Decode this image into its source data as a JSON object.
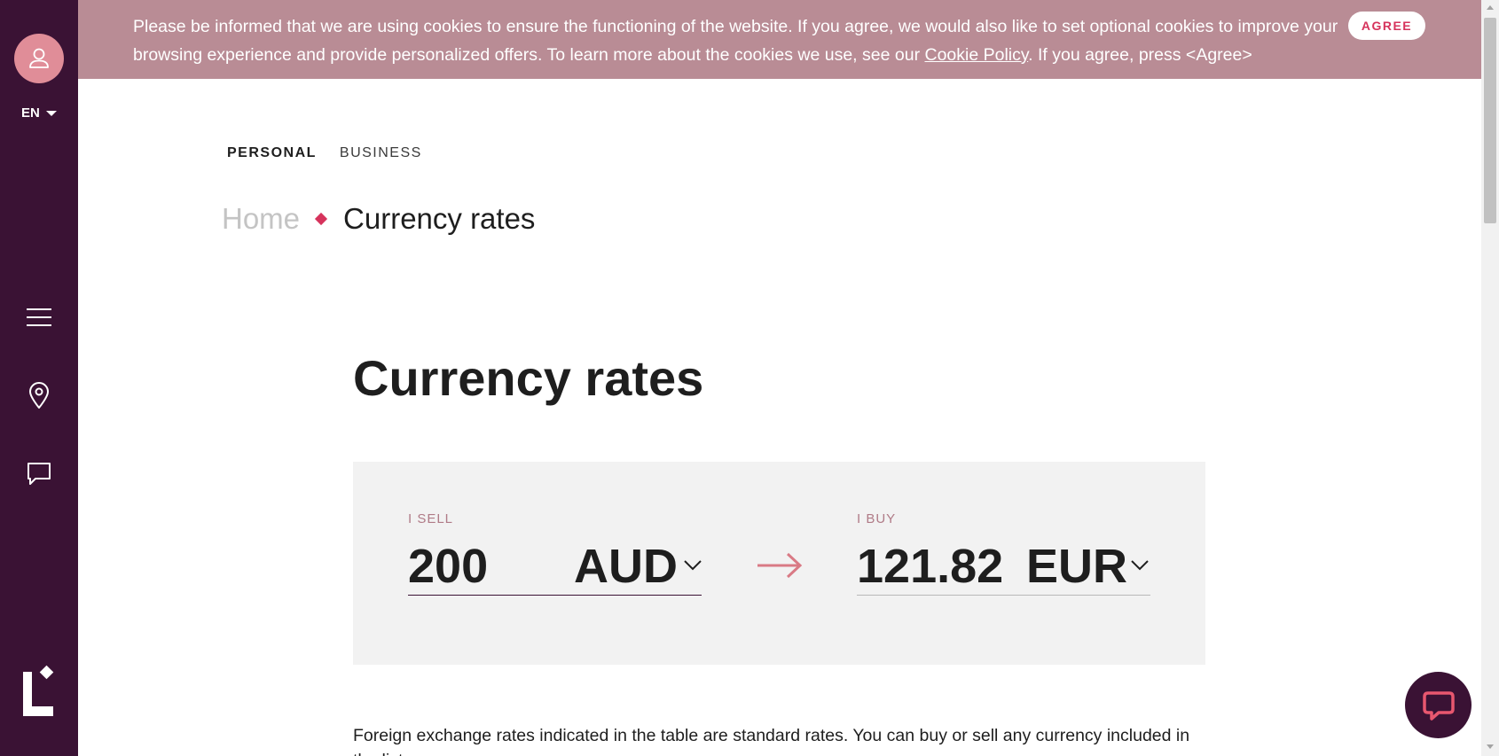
{
  "sidebar": {
    "language": "EN"
  },
  "cookie": {
    "text_before_link": "Please be informed that we are using cookies to ensure the functioning of the website. If you agree, we would also like to set optional cookies to improve your browsing experience and provide personalized offers. To learn more about the cookies we use, see our ",
    "link_label": "Cookie Policy",
    "text_after_link": ". If you agree, press <Agree>",
    "agree_label": "AGREE"
  },
  "topnav": {
    "personal": "PERSONAL",
    "business": "BUSINESS"
  },
  "breadcrumb": {
    "home": "Home",
    "current": "Currency rates"
  },
  "page_title": "Currency rates",
  "converter": {
    "sell_label": "I SELL",
    "sell_amount": "200",
    "sell_currency": "AUD",
    "buy_label": "I BUY",
    "buy_amount": "121.82",
    "buy_currency": "EUR"
  },
  "info_text": "Foreign exchange rates indicated in the table are standard rates. You can buy or sell any currency included in the list",
  "colors": {
    "sidebar_bg": "#3a1234",
    "cookie_bg": "#b98c95",
    "accent": "#d6335c",
    "avatar": "#e08d98",
    "converter_bg": "#f2f2f2"
  },
  "icons": {
    "avatar": "user-icon",
    "menu": "hamburger-menu-icon",
    "location": "location-pin-icon",
    "chat": "chat-bubble-icon",
    "arrow": "arrow-right-icon",
    "dropdown": "chevron-down-icon"
  }
}
